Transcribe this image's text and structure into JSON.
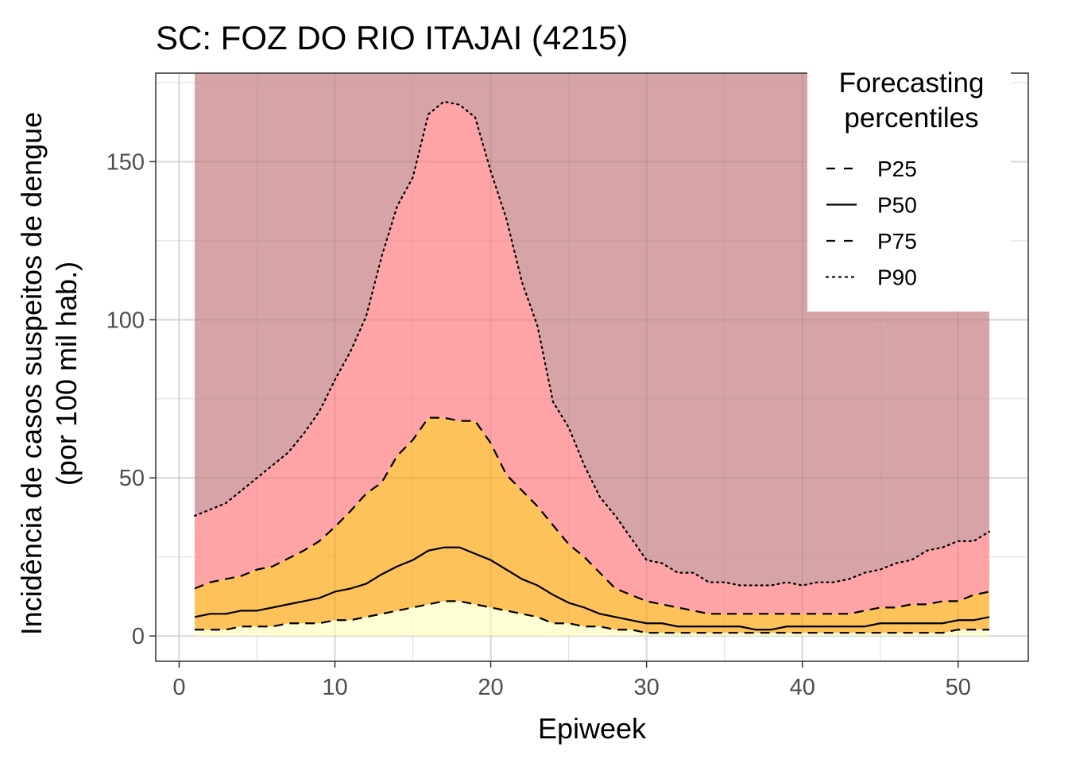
{
  "chart_data": {
    "type": "area",
    "title": "SC: FOZ DO RIO ITAJAI (4215)",
    "xlabel": "Epiweek",
    "ylabel_line1": "Incidência de casos suspeitos de dengue",
    "ylabel_line2": "(por 100 mil hab.)",
    "xlim": [
      -1.5,
      54.5
    ],
    "ylim": [
      -8,
      178
    ],
    "x_ticks": [
      0,
      10,
      20,
      30,
      40,
      50
    ],
    "y_ticks": [
      0,
      50,
      100,
      150
    ],
    "x_tick_labels": [
      "0",
      "10",
      "20",
      "30",
      "40",
      "50"
    ],
    "y_tick_labels": [
      "0",
      "50",
      "100",
      "150"
    ],
    "band_top": 178,
    "x": [
      1,
      2,
      3,
      4,
      5,
      6,
      7,
      8,
      9,
      10,
      11,
      12,
      13,
      14,
      15,
      16,
      17,
      18,
      19,
      20,
      21,
      22,
      23,
      24,
      25,
      26,
      27,
      28,
      29,
      30,
      31,
      32,
      33,
      34,
      35,
      36,
      37,
      38,
      39,
      40,
      41,
      42,
      43,
      44,
      45,
      46,
      47,
      48,
      49,
      50,
      51,
      52
    ],
    "series": [
      {
        "name": "P25",
        "style": "dashed",
        "values": [
          2,
          2,
          2,
          3,
          3,
          3,
          4,
          4,
          4,
          5,
          5,
          6,
          7,
          8,
          9,
          10,
          11,
          11,
          10,
          9,
          8,
          7,
          6,
          4,
          4,
          3,
          3,
          2,
          2,
          1,
          1,
          1,
          1,
          1,
          1,
          1,
          1,
          1,
          1,
          1,
          1,
          1,
          1,
          1,
          1,
          1,
          1,
          1,
          1,
          2,
          2,
          2
        ]
      },
      {
        "name": "P50",
        "style": "solid",
        "values": [
          6,
          7,
          7,
          8,
          8,
          9,
          10,
          11,
          12,
          14,
          15,
          16.5,
          19.5,
          22,
          24,
          27,
          28,
          28,
          26,
          24,
          21,
          18,
          16,
          13,
          10.5,
          9,
          7,
          6,
          5,
          4,
          4,
          3,
          3,
          3,
          3,
          3,
          2,
          2,
          3,
          3,
          3,
          3,
          3,
          3,
          4,
          4,
          4,
          4,
          4,
          5,
          5,
          6
        ]
      },
      {
        "name": "P75",
        "style": "dashed",
        "values": [
          15,
          17,
          18,
          19,
          21,
          22,
          24.5,
          27,
          30,
          34.5,
          39.5,
          45,
          48.5,
          57,
          62,
          69,
          69,
          68,
          68,
          61,
          51,
          46,
          41,
          35,
          29,
          25,
          20,
          15,
          13,
          11,
          10,
          9,
          8,
          7,
          7,
          7,
          7,
          7,
          7,
          7,
          7,
          7,
          7,
          8,
          9,
          9,
          10,
          10,
          11,
          11,
          13,
          14
        ]
      },
      {
        "name": "P90",
        "style": "dotted",
        "values": [
          38,
          40,
          42,
          46,
          50,
          54,
          58,
          64,
          71,
          81,
          90,
          101,
          120,
          136,
          145,
          165,
          169,
          168,
          164,
          147,
          132,
          112,
          98,
          74,
          66,
          54,
          44,
          38,
          31,
          24,
          23,
          20,
          20,
          17,
          17,
          16,
          16,
          16,
          17,
          16,
          17,
          17,
          18,
          20,
          21,
          23,
          24,
          27,
          28,
          30,
          30,
          33
        ]
      }
    ],
    "bands": [
      {
        "from": "zero",
        "to": "P25",
        "color": "#FFFFD4"
      },
      {
        "from": "P25",
        "to": "P75",
        "color": "#FDC25A"
      },
      {
        "from": "P75",
        "to": "P90",
        "color": "#FEA3A6"
      },
      {
        "from": "P90",
        "to": "top",
        "color": "#D6A4A6"
      }
    ],
    "grid": true,
    "legend": {
      "title_line1": "Forecasting",
      "title_line2": "percentiles",
      "placement": "top-right",
      "entries": [
        {
          "label": "P25",
          "style": "dashed"
        },
        {
          "label": "P50",
          "style": "solid"
        },
        {
          "label": "P75",
          "style": "dashed"
        },
        {
          "label": "P90",
          "style": "dotted"
        }
      ]
    }
  }
}
